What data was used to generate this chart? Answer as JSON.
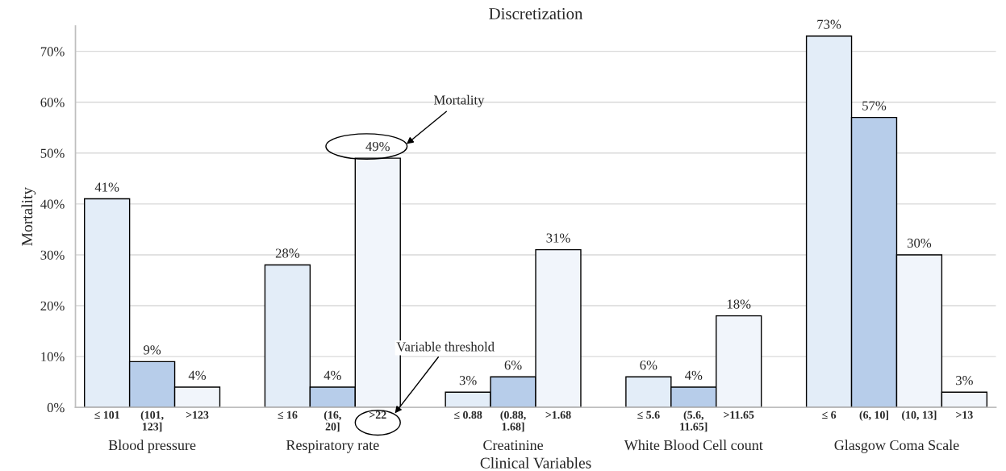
{
  "chart_data": {
    "type": "bar",
    "title": "Discretization",
    "xlabel": "Clinical Variables",
    "ylabel": "Mortality",
    "categories": [
      "≤ 101",
      "(101,\n123]",
      ">123",
      null,
      "≤ 16",
      "(16,\n20]",
      ">22",
      null,
      "≤ 0.88",
      "(0.88,\n1.68]",
      ">1.68",
      null,
      "≤ 5.6",
      "(5.6,\n11.65]",
      ">11.65",
      null,
      "≤ 6",
      "(6, 10]",
      "(10, 13]",
      ">13"
    ],
    "values": [
      41,
      9,
      4,
      null,
      28,
      4,
      49,
      null,
      3,
      6,
      31,
      null,
      6,
      4,
      18,
      null,
      73,
      57,
      30,
      3
    ],
    "colors": [
      "#e3edf8",
      "#b7cdea",
      "#f1f5fb",
      null,
      "#e3edf8",
      "#b7cdea",
      "#f1f5fb",
      null,
      "#e3edf8",
      "#b7cdea",
      "#f1f5fb",
      null,
      "#e3edf8",
      "#b7cdea",
      "#f1f5fb",
      null,
      "#e3edf8",
      "#b7cdea",
      "#f1f5fb",
      "#f1f5fb"
    ],
    "value_labels": [
      "41%",
      "9%",
      "4%",
      null,
      "28%",
      "4%",
      "49%",
      null,
      "3%",
      "6%",
      "31%",
      null,
      "6%",
      "4%",
      "18%",
      null,
      "73%",
      "57%",
      "30%",
      "3%"
    ],
    "ylim": [
      0,
      75
    ],
    "yticks": [
      {
        "value": 0,
        "label": "0%"
      },
      {
        "value": 10,
        "label": "10%"
      },
      {
        "value": 20,
        "label": "20%"
      },
      {
        "value": 30,
        "label": "30%"
      },
      {
        "value": 40,
        "label": "40%"
      },
      {
        "value": 50,
        "label": "50%"
      },
      {
        "value": 60,
        "label": "60%"
      },
      {
        "value": 70,
        "label": "70%"
      }
    ],
    "grid": "y",
    "annotations": [
      "Blood pressure",
      "Respiratory rate",
      "Creatinine",
      "White Blood Cell count",
      "Glasgow Coma Scale",
      "Mortality",
      "Variable threshold"
    ]
  }
}
